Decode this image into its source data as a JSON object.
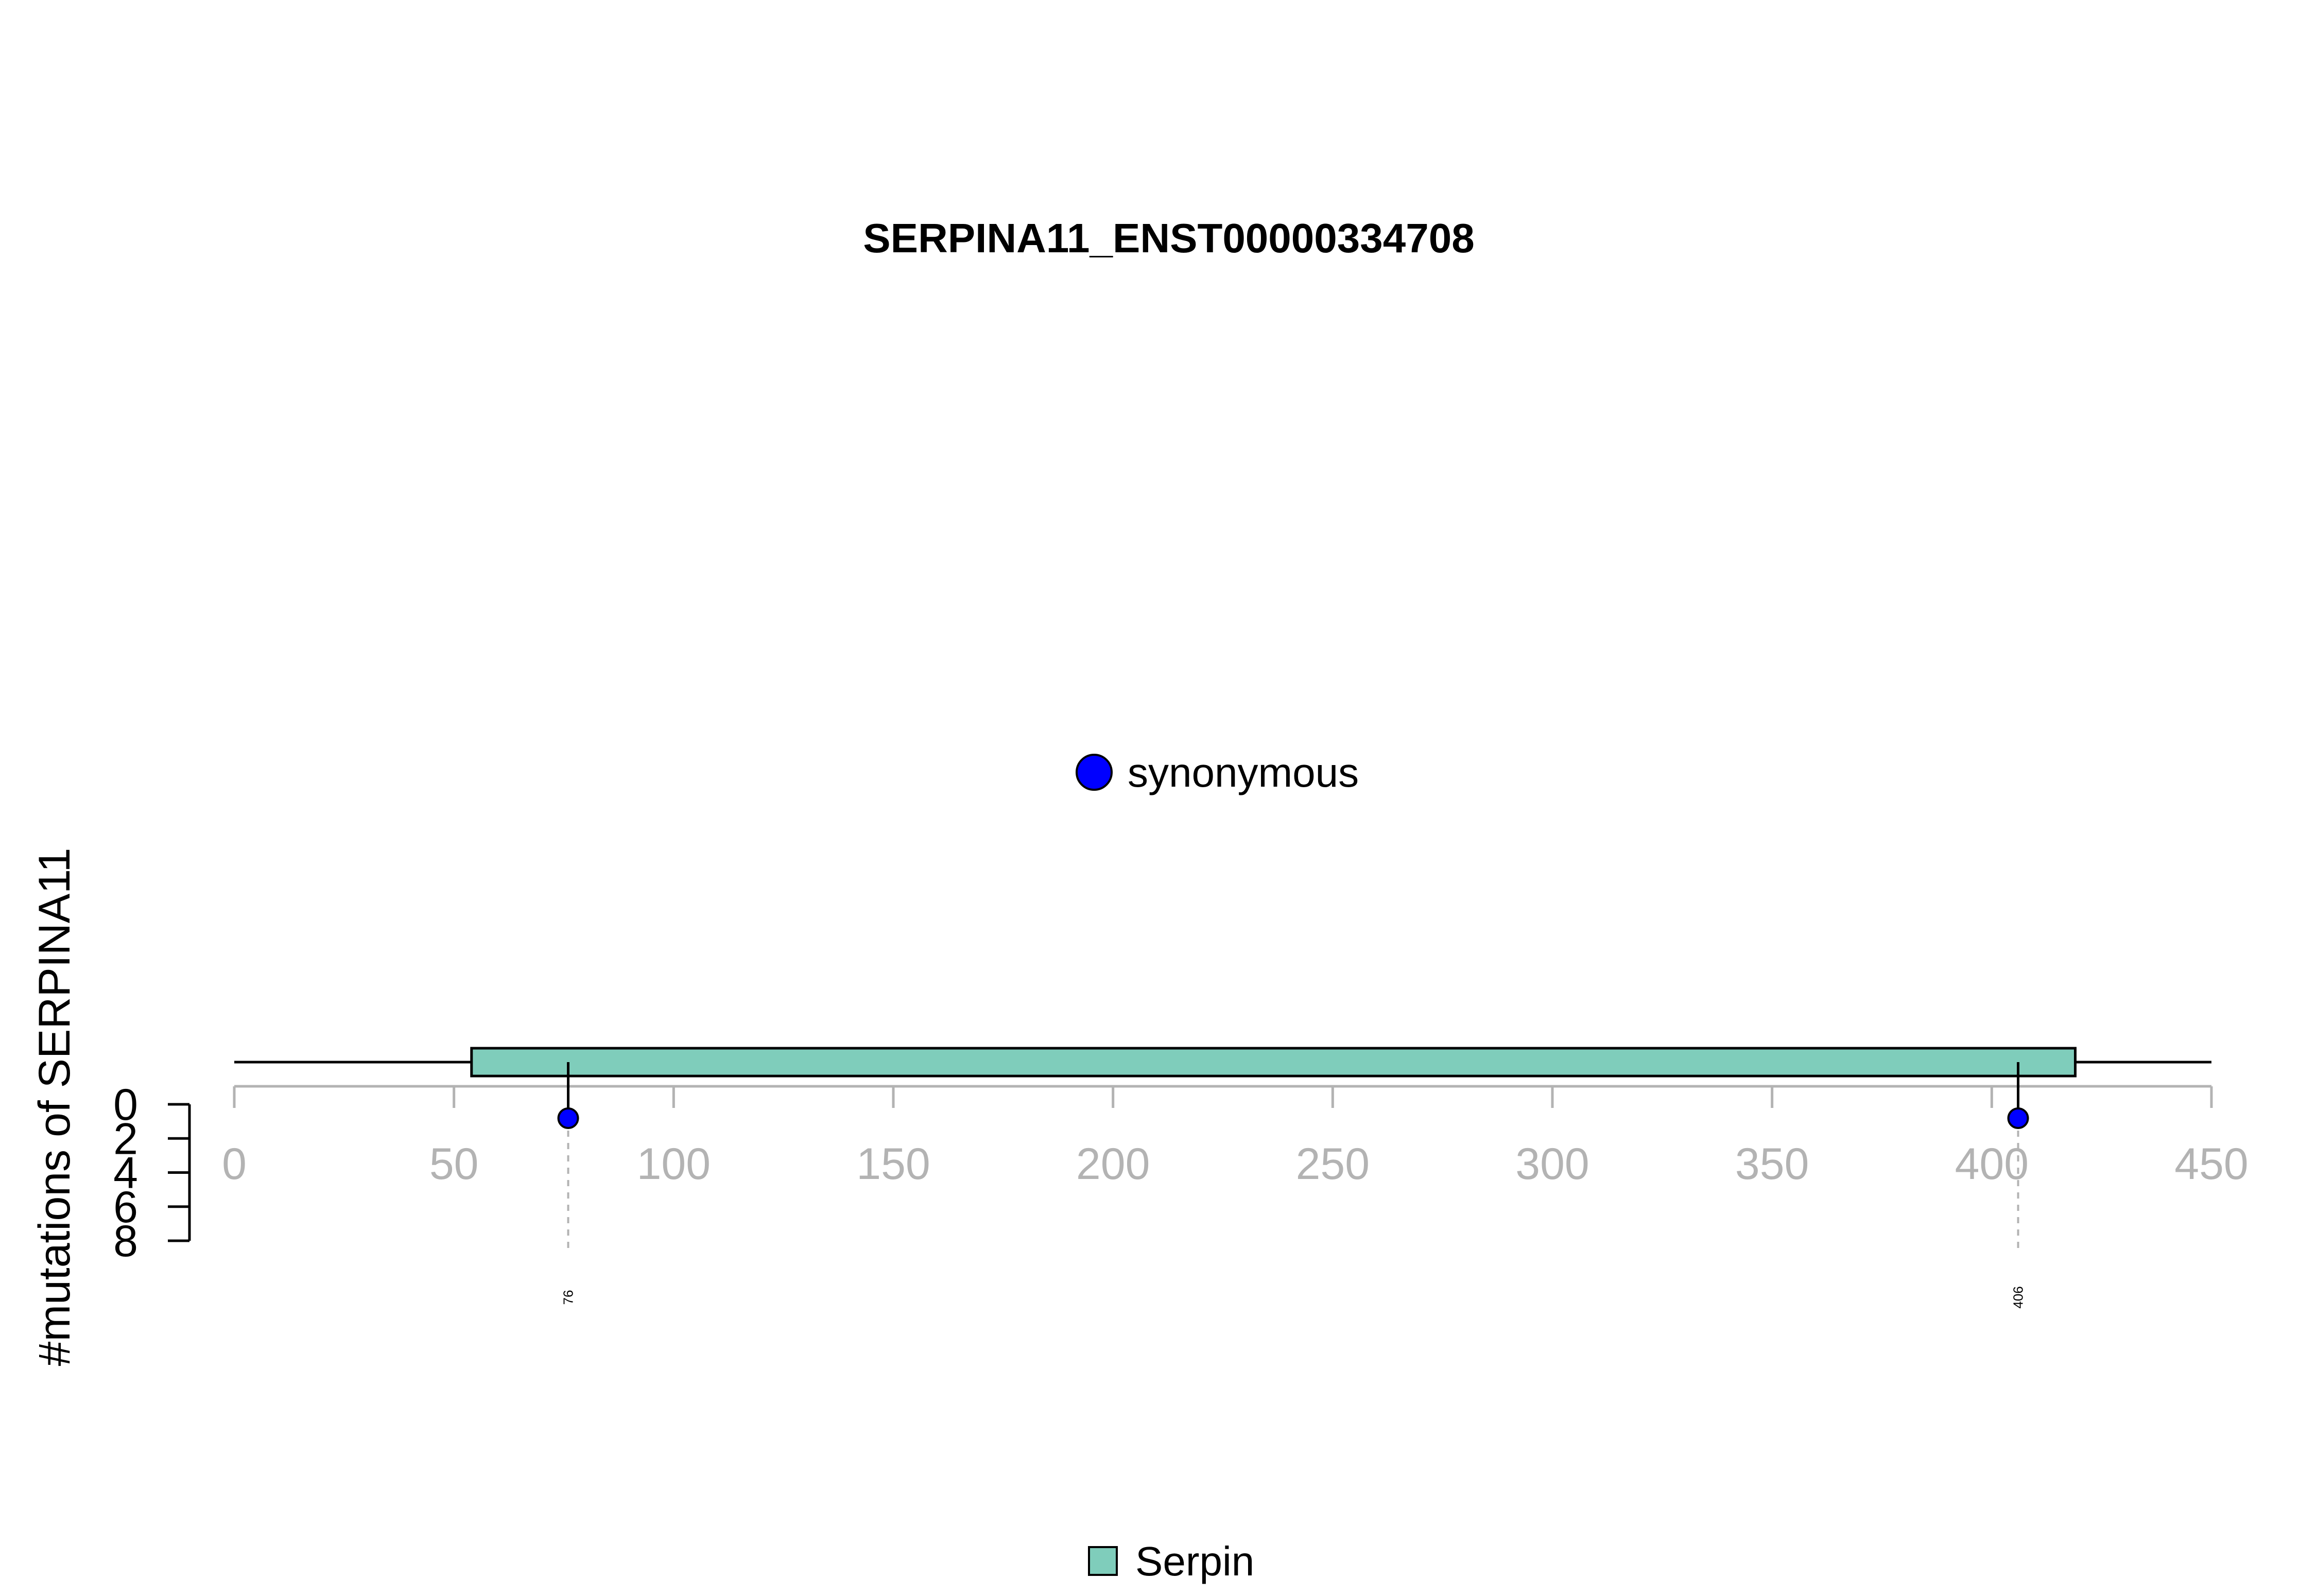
{
  "chart_data": {
    "type": "lollipop",
    "title": "SERPINA11_ENST00000334708",
    "ylabel": "#mutations of SERPINA11",
    "xlabel": "",
    "xlim": [
      0,
      450
    ],
    "x_ticks": [
      "0",
      "50",
      "100",
      "150",
      "200",
      "250",
      "300",
      "350",
      "400",
      "450"
    ],
    "ylim": [
      0,
      8
    ],
    "y_ticks": [
      "0",
      "2",
      "4",
      "6",
      "8"
    ],
    "protein_length": 450,
    "domains": [
      {
        "name": "Serpin",
        "start": 54,
        "end": 419,
        "color": "#7fcdbb"
      }
    ],
    "mutation_legend": [
      {
        "name": "synonymous",
        "color": "#0000ff"
      }
    ],
    "mutations": [
      {
        "position": 76,
        "label": "76",
        "count": 1,
        "type": "synonymous",
        "color": "#0000ff"
      },
      {
        "position": 406,
        "label": "406",
        "count": 1,
        "type": "synonymous",
        "color": "#0000ff"
      }
    ],
    "domain_legend": [
      {
        "name": "Serpin",
        "color": "#7fcdbb"
      }
    ],
    "grid": false
  }
}
